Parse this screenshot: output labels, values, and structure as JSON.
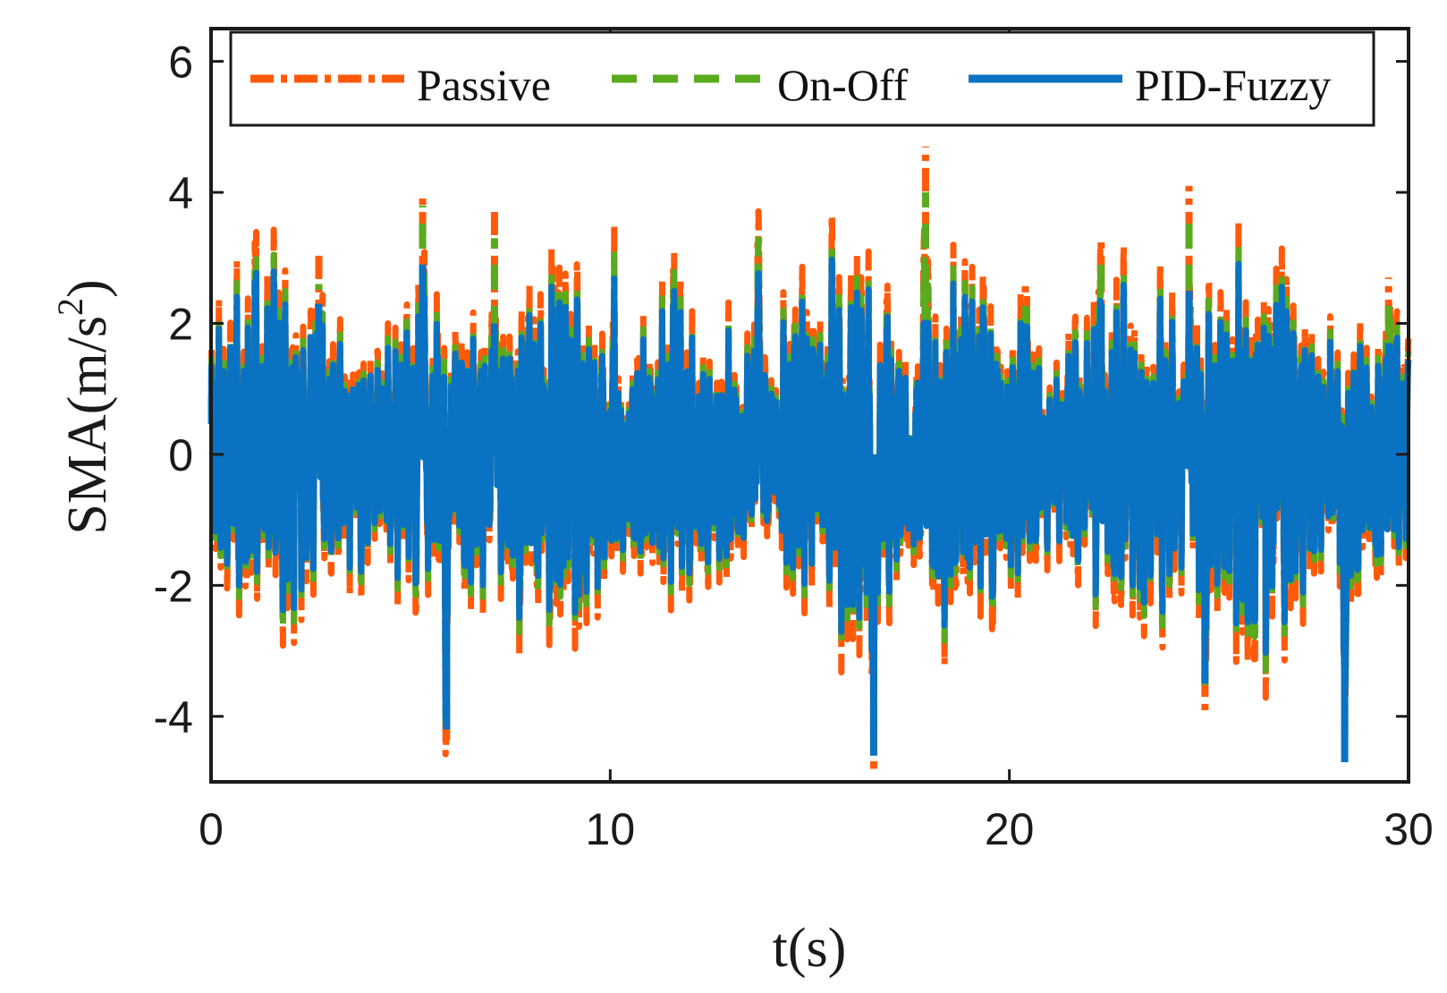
{
  "chart_data": {
    "type": "line",
    "title": "",
    "xlabel": "t(s)",
    "ylabel": "SMA(m/s",
    "ylabel_superscript": "2",
    "ylabel_suffix": ")",
    "xlim": [
      0,
      30
    ],
    "ylim": [
      -5,
      6.5
    ],
    "xticks": [
      0,
      10,
      20,
      30
    ],
    "xtick_labels": [
      "0",
      "10",
      "20",
      "30"
    ],
    "yticks": [
      -4,
      -2,
      0,
      2,
      4,
      6
    ],
    "ytick_labels": [
      "-4",
      "-2",
      "0",
      "2",
      "4",
      "6"
    ],
    "grid": false,
    "legend_position": "top",
    "series": [
      {
        "name": "Passive",
        "color": "#FF5A0A",
        "style": "dash-dot",
        "x": [
          0.3,
          1.1,
          2.7,
          5.3,
          5.9,
          7.1,
          8.6,
          10.1,
          11.6,
          13.7,
          16.6,
          17.9,
          20.4,
          22.3,
          24.5,
          24.9,
          26.7,
          28.4,
          29.5
        ],
        "peaks": [
          1.2,
          2.2,
          3.1,
          4.0,
          -4.4,
          3.7,
          2.6,
          2.2,
          2.4,
          3.3,
          -4.8,
          4.7,
          2.6,
          3.3,
          4.1,
          -4.0,
          2.4,
          -4.6,
          2.7
        ],
        "amplitude_envelope": 2.7
      },
      {
        "name": "On-Off",
        "color": "#5AAA1E",
        "style": "dashed",
        "x": [
          0.3,
          1.1,
          2.7,
          5.3,
          5.9,
          7.1,
          8.6,
          10.1,
          11.6,
          13.7,
          16.6,
          17.9,
          20.4,
          22.3,
          24.5,
          24.9,
          26.7,
          28.4,
          29.5
        ],
        "peaks": [
          1.0,
          2.0,
          2.6,
          3.8,
          -4.0,
          3.3,
          2.3,
          2.0,
          2.2,
          2.9,
          -4.3,
          4.0,
          2.4,
          3.0,
          3.7,
          -3.6,
          2.2,
          -4.2,
          2.5
        ],
        "amplitude_envelope": 2.4
      },
      {
        "name": "PID-Fuzzy",
        "color": "#0A72C2",
        "style": "solid",
        "x": [
          0.3,
          1.1,
          2.7,
          5.3,
          5.9,
          7.1,
          8.6,
          10.1,
          11.6,
          13.7,
          16.6,
          17.9,
          20.4,
          22.3,
          24.5,
          24.9,
          26.7,
          28.4,
          29.5
        ],
        "peaks": [
          0.9,
          1.8,
          2.3,
          2.9,
          -4.2,
          2.0,
          1.9,
          1.5,
          1.9,
          2.2,
          -4.6,
          2.0,
          2.0,
          2.3,
          2.5,
          -3.5,
          1.9,
          -4.7,
          1.7
        ],
        "amplitude_envelope": 2.2
      }
    ]
  }
}
